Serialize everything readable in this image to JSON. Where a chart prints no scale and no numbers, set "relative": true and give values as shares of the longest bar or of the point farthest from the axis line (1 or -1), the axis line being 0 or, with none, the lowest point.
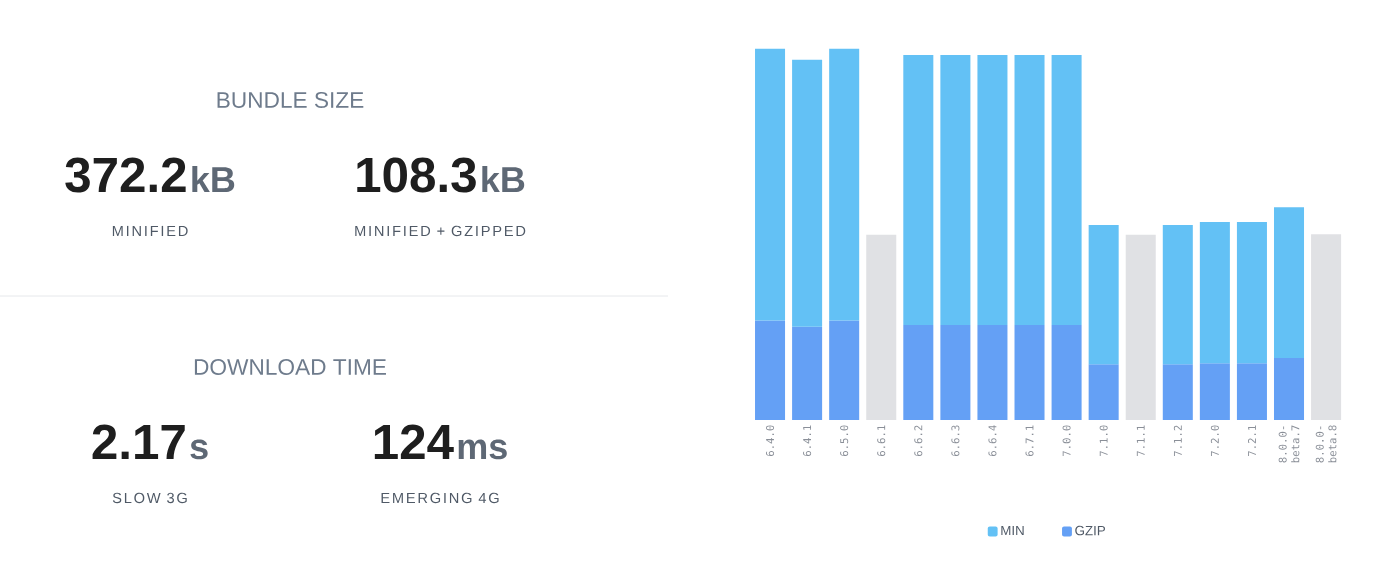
{
  "chart_data": [
    {
      "type": "other",
      "title": "BUNDLE SIZE",
      "annotations": [
        "372.2",
        "kB",
        "MINIFIED",
        "108.3",
        "kB",
        "MINIFIED + GZIPPED"
      ]
    },
    {
      "type": "other",
      "title": "DOWNLOAD TIME",
      "annotations": [
        "2.17",
        "s",
        "SLOW 3G",
        "124",
        "ms",
        "EMERGING 4G"
      ]
    },
    {
      "type": "bar",
      "stacked": true,
      "relative": true,
      "legend": "bottom",
      "categories": [
        "6.4.0",
        "6.4.1",
        "6.5.0",
        "6.6.1",
        "6.6.2",
        "6.6.3",
        "6.6.4",
        "6.7.1",
        "7.0.0",
        "7.1.0",
        "7.1.1",
        "7.1.2",
        "7.2.0",
        "7.2.1",
        "8.0.0-beta.7",
        "8.0.0-beta.8"
      ],
      "series": [
        {
          "name": "GZIP",
          "color": "#64a0f5",
          "values": [
            0.268,
            0.251,
            0.268,
            null,
            0.256,
            0.256,
            0.256,
            0.256,
            0.256,
            0.15,
            null,
            0.15,
            0.153,
            0.153,
            0.167,
            null
          ]
        },
        {
          "name": "MIN",
          "color": "#63c1f5",
          "values": [
            0.732,
            0.719,
            0.732,
            null,
            0.727,
            0.727,
            0.727,
            0.727,
            0.727,
            0.375,
            null,
            0.375,
            0.38,
            0.38,
            0.406,
            null
          ]
        },
        {
          "color": "#e0e1e4",
          "values": [
            null,
            null,
            null,
            0.499,
            null,
            null,
            null,
            null,
            null,
            null,
            0.499,
            null,
            null,
            null,
            null,
            0.5
          ]
        }
      ]
    }
  ]
}
